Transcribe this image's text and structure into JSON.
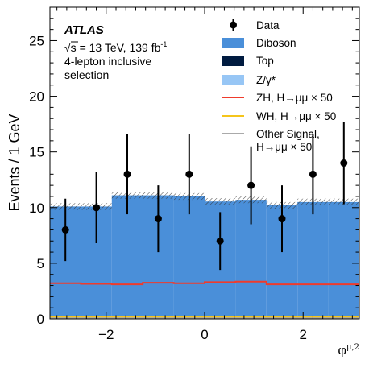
{
  "chart_data": {
    "type": "bar",
    "title": "",
    "xlabel": "φ^{μ,2}",
    "ylabel": "Events / 1 GeV",
    "xlim": [
      -3.1416,
      3.1416
    ],
    "ylim": [
      0,
      28
    ],
    "x_ticks": [
      -2,
      0,
      2
    ],
    "x_tick_labels": [
      "−2",
      "0",
      "2"
    ],
    "y_ticks": [
      0,
      5,
      10,
      15,
      20,
      25
    ],
    "y_tick_labels": [
      "0",
      "5",
      "10",
      "15",
      "20",
      "25"
    ],
    "legend_placement": "top-right",
    "grid": false,
    "annotation": {
      "experiment": "ATLAS",
      "energy_prefix": "√s = 13 TeV, 139 fb",
      "lumi_sup": "-1",
      "line2": "4-lepton inclusive",
      "line3": "selection"
    },
    "bins": [
      -3.1416,
      -2.5133,
      -1.885,
      -1.2566,
      -0.6283,
      0.0,
      0.6283,
      1.2566,
      1.885,
      2.5133,
      3.1416
    ],
    "stack": [
      {
        "name": "Top",
        "color": "#001b40",
        "values": [
          0.05,
          0.05,
          0.15,
          0.05,
          0.05,
          0.2,
          0.05,
          0.05,
          0.05,
          0.05
        ]
      },
      {
        "name": "Z/γ*",
        "color": "#97c6f5",
        "values": [
          0.05,
          0.05,
          0.05,
          0.05,
          0.05,
          0.05,
          0.05,
          0.05,
          0.05,
          0.05
        ]
      },
      {
        "name": "Diboson",
        "color": "#4a8fd9",
        "values": [
          10.0,
          10.0,
          10.9,
          11.0,
          10.9,
          10.3,
          10.6,
          10.1,
          10.4,
          10.4
        ]
      }
    ],
    "uncertainty": [
      0.6,
      0.6,
      0.6,
      0.6,
      0.6,
      0.6,
      0.6,
      0.6,
      0.6,
      0.6
    ],
    "signals": [
      {
        "name": "ZH, H→μμ × 50",
        "color": "#ef3b2c",
        "values": [
          3.2,
          3.15,
          3.1,
          3.25,
          3.2,
          3.3,
          3.35,
          3.1,
          3.1,
          3.1
        ]
      },
      {
        "name": "WH, H→μμ × 50",
        "color": "#f5c51b",
        "values": [
          0.15,
          0.15,
          0.15,
          0.15,
          0.15,
          0.15,
          0.15,
          0.15,
          0.15,
          0.15
        ]
      },
      {
        "name": "Other Signal, H→μμ × 50",
        "color": "#aaaaaa",
        "values": [
          0.05,
          0.05,
          0.05,
          0.05,
          0.05,
          0.05,
          0.05,
          0.05,
          0.05,
          0.05
        ]
      }
    ],
    "data_series": {
      "name": "Data",
      "x": [
        -2.8274,
        -2.1991,
        -1.5708,
        -0.9425,
        -0.3142,
        0.3142,
        0.9425,
        1.5708,
        2.1991,
        2.8274
      ],
      "y": [
        8,
        10,
        13,
        9,
        13,
        7,
        12,
        9,
        13,
        14
      ],
      "yerr": [
        2.8,
        3.2,
        3.6,
        3.0,
        3.6,
        2.6,
        3.5,
        3.0,
        3.6,
        3.7
      ]
    },
    "legend": [
      {
        "label": "Data",
        "kind": "marker",
        "color": "#000000"
      },
      {
        "label": "Diboson",
        "kind": "fill",
        "color": "#4a8fd9"
      },
      {
        "label": "Top",
        "kind": "fill",
        "color": "#001b40"
      },
      {
        "label": "Z/γ*",
        "kind": "fill",
        "color": "#97c6f5"
      },
      {
        "label": "ZH, H→μμ × 50",
        "kind": "line",
        "color": "#ef3b2c"
      },
      {
        "label": "WH, H→μμ × 50",
        "kind": "line",
        "color": "#f5c51b"
      },
      {
        "label": "Other Signal,",
        "label2": "H→μμ × 50",
        "kind": "line",
        "color": "#aaaaaa"
      }
    ]
  }
}
